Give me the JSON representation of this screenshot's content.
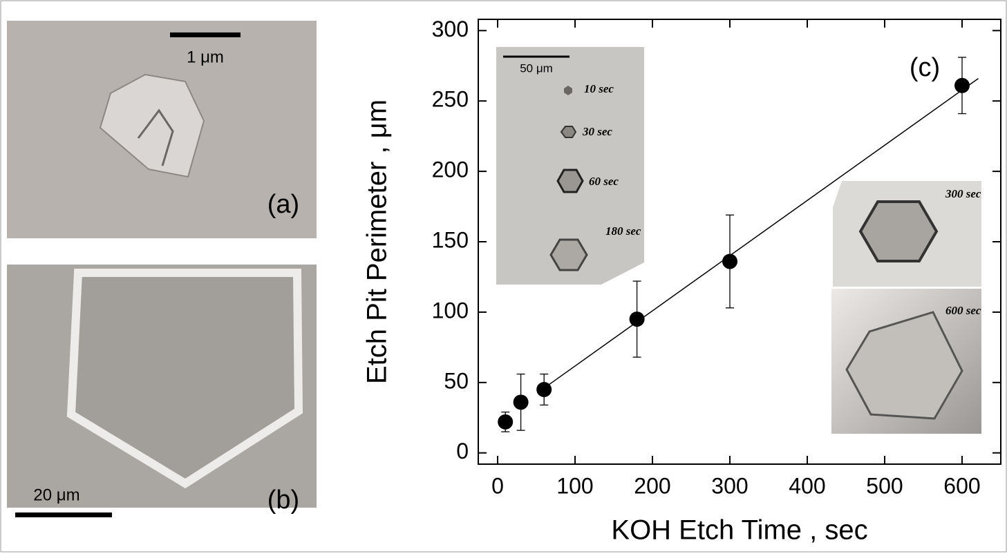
{
  "panel_a": {
    "label": "(a)",
    "scale_bar": "1 μm"
  },
  "panel_b": {
    "label": "(b)",
    "scale_bar": "20 μm"
  },
  "chart_data": {
    "type": "scatter",
    "panel_label": "(c)",
    "x_label": "KOH Etch Time , sec",
    "y_label": "Etch Pit Perimeter , μm",
    "x": [
      10,
      30,
      60,
      180,
      300,
      600
    ],
    "values": [
      22,
      36,
      45,
      95,
      136,
      261
    ],
    "errors": [
      7,
      20,
      11,
      27,
      33,
      20
    ],
    "color": "#000000",
    "fit_line": {
      "x": [
        60,
        621
      ],
      "y": [
        46,
        266
      ]
    },
    "xlim": [
      -25,
      650
    ],
    "ylim": [
      -8,
      308
    ],
    "xticks": [
      0,
      100,
      200,
      300,
      400,
      500,
      600
    ],
    "yticks": [
      0,
      50,
      100,
      150,
      200,
      250,
      300
    ],
    "inset_scale_bar": "50 μm",
    "inset_labels": [
      "10 sec",
      "30 sec",
      "60 sec",
      "180 sec",
      "300 sec",
      "600 sec"
    ]
  }
}
